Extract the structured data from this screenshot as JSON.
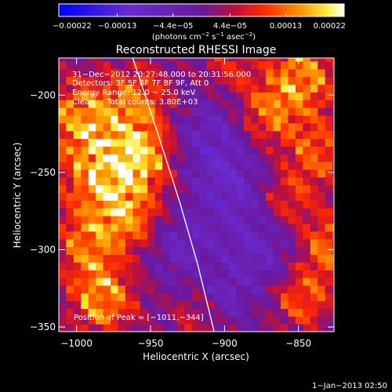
{
  "chart_data": {
    "type": "heatmap",
    "title": "Reconstructed RHESSI Image",
    "xlabel": "Heliocentric X (arcsec)",
    "ylabel": "Heliocentric Y (arcsec)",
    "xlim": [
      -1012,
      -826
    ],
    "ylim": [
      -353,
      -176
    ],
    "x_ticks": [
      -1000,
      -950,
      -900,
      -850
    ],
    "x_tick_labels": [
      "−1000",
      "−950",
      "−900",
      "−850"
    ],
    "y_ticks": [
      -200,
      -250,
      -300,
      -350
    ],
    "y_tick_labels": [
      "−200",
      "−250",
      "−300",
      "−350"
    ],
    "colorbar": {
      "colormap": "blue-purple-red-yellow-white",
      "range": [
        -0.00022,
        0.00022
      ],
      "tick_values": [
        -0.00022,
        -0.00013,
        -4.4e-05,
        4.4e-05,
        0.00013,
        0.00022
      ],
      "tick_labels": [
        "−0.00022",
        "−0.00013",
        "−4.4e−05",
        "4.4e−05",
        "0.00013",
        "0.00022"
      ],
      "unit_base": "(photons cm",
      "unit_exp1": "−2",
      "unit_mid": " s",
      "unit_exp2": "−1",
      "unit_mid2": " asec",
      "unit_exp3": "−2",
      "unit_end": ")"
    },
    "annotations": [
      "31−Dec−2012 20:27:48.000 to 20:31:56.000",
      "Detectors: 3F 5F 6F 7F 8F 9F, Att 0",
      "Energy Range: 12.0 − 25.0 keV",
      "Clean     Total counts: 3.80E+03"
    ],
    "peak_label": "Position of Peak = [−1011,−344]",
    "peak": [
      -1011,
      -344
    ],
    "limb_curve": [
      [
        -962,
        -176
      ],
      [
        -945,
        -225
      ],
      [
        -930,
        -270
      ],
      [
        -918,
        -310
      ],
      [
        -907,
        -353
      ]
    ]
  },
  "timestamp": "1−Jan−2013 02:50"
}
